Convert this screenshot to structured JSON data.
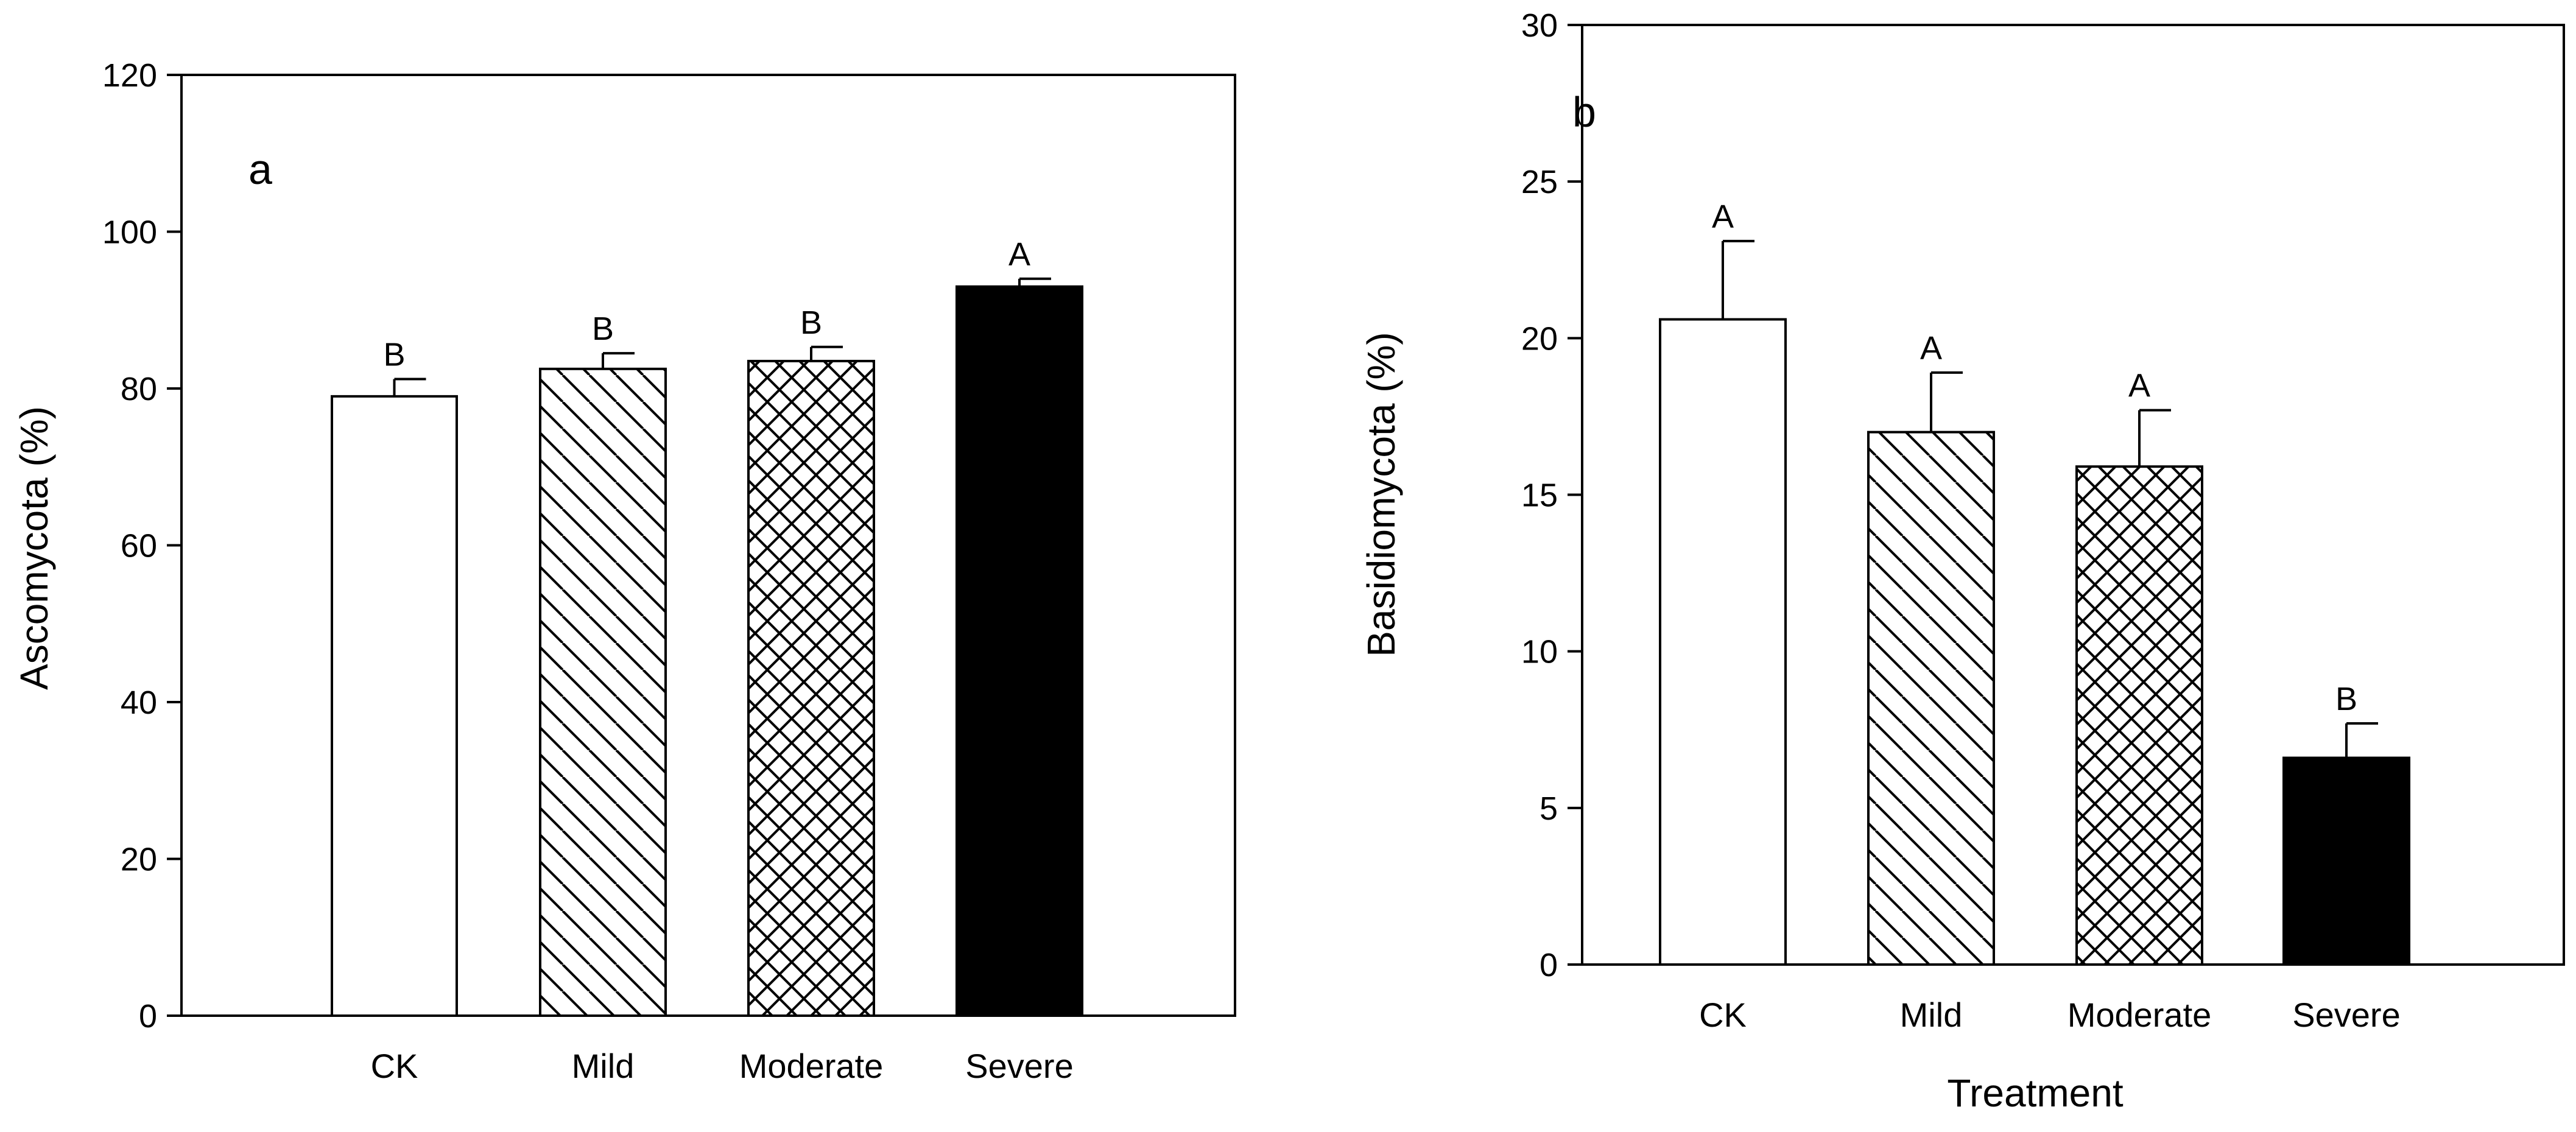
{
  "chart_data": [
    {
      "type": "bar",
      "panel": "a",
      "categories": [
        "CK",
        "Mild",
        "Moderate",
        "Severe"
      ],
      "values": [
        79,
        82.5,
        83.5,
        93
      ],
      "errors": [
        2.2,
        2.0,
        1.8,
        1.0
      ],
      "significance": [
        "B",
        "B",
        "B",
        "A"
      ],
      "patterns": [
        "none",
        "diagonal",
        "crosshatch",
        "solid"
      ],
      "title": "",
      "xlabel": "",
      "ylabel": "Ascomycota (%)",
      "ylim": [
        0,
        120
      ],
      "yticks": [
        0,
        20,
        40,
        60,
        80,
        100,
        120
      ],
      "grid": false
    },
    {
      "type": "bar",
      "panel": "b",
      "categories": [
        "CK",
        "Mild",
        "Moderate",
        "Severe"
      ],
      "values": [
        20.6,
        17.0,
        15.9,
        6.6
      ],
      "errors": [
        2.5,
        1.9,
        1.8,
        1.1
      ],
      "significance": [
        "A",
        "A",
        "A",
        "B"
      ],
      "patterns": [
        "none",
        "diagonal",
        "crosshatch",
        "solid"
      ],
      "title": "",
      "xlabel": "Treatment",
      "ylabel": "Basidiomycota (%)",
      "ylim": [
        0,
        30
      ],
      "yticks": [
        0,
        5,
        10,
        15,
        20,
        25,
        30
      ],
      "grid": false
    }
  ]
}
